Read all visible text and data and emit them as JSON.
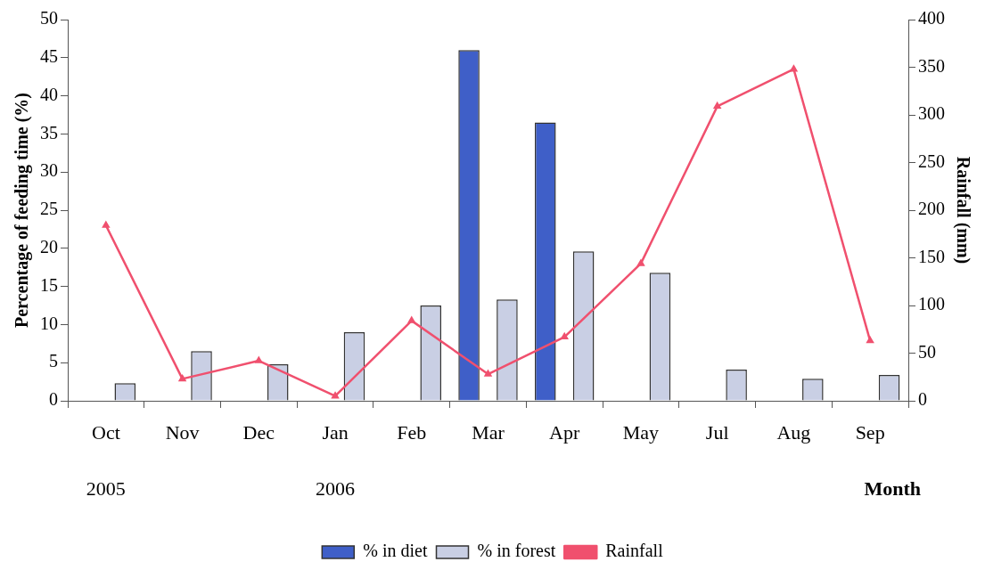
{
  "chart_data": {
    "type": "bar",
    "categories": [
      "Oct",
      "Nov",
      "Dec",
      "Jan",
      "Feb",
      "Mar",
      "Apr",
      "May",
      "Jul",
      "Aug",
      "Sep"
    ],
    "series": [
      {
        "name": "% in diet",
        "color": "#3f5fc8",
        "values": [
          0,
          0,
          0,
          0,
          0,
          46,
          36.5,
          0,
          0,
          0,
          0
        ]
      },
      {
        "name": "% in forest",
        "color": "#c9cfe4",
        "values": [
          2.3,
          6.5,
          4.8,
          9,
          12.5,
          13.3,
          19.6,
          16.8,
          4.1,
          2.9,
          3.4
        ]
      },
      {
        "name": "Rainfall",
        "type": "line",
        "axis": "y2",
        "color": "#f0506e",
        "marker": "triangle",
        "values": [
          184,
          23,
          42,
          5,
          84,
          28,
          67,
          144,
          309,
          348,
          63
        ]
      }
    ],
    "xlabel": "Month",
    "ylabel": "Percentage of feeding time (%)",
    "y2label": "Rainfall (mm)",
    "ylim": [
      0,
      50
    ],
    "yticks": [
      0,
      5,
      10,
      15,
      20,
      25,
      30,
      35,
      40,
      45,
      50
    ],
    "y2lim": [
      0,
      400
    ],
    "y2ticks": [
      0,
      50,
      100,
      150,
      200,
      250,
      300,
      350,
      400
    ],
    "annotations": [
      "2005",
      "2006"
    ],
    "grid": false,
    "legend": "bottom"
  }
}
